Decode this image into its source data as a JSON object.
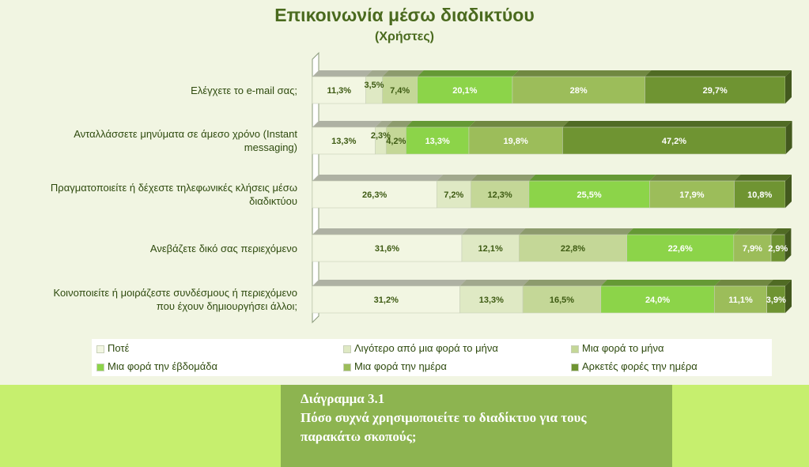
{
  "chart_data": {
    "type": "bar",
    "stacked": true,
    "orientation": "horizontal",
    "percent": true,
    "title": "Επικοινωνία μέσω διαδικτύου",
    "subtitle": "(Χρήστες)",
    "xlim": [
      0,
      100
    ],
    "legend_position": "bottom",
    "categories": [
      "Ελέγχετε το e-mail σας;",
      "Ανταλλάσσετε μηνύματα σε άμεσο χρόνο  (Instant messaging)",
      "Πραγματοποιείτε ή δέχεστε τηλεφωνικές κλήσεις μέσω διαδικτύου",
      "Ανεβάζετε δικό σας περιεχόμενο",
      "Κοινοποιείτε ή μοιράζεστε συνδέσμους ή περιεχόμενο που έχουν δημιουργήσει άλλοι;"
    ],
    "category_lines": [
      [
        "Ελέγχετε το e-mail σας;"
      ],
      [
        "Ανταλλάσσετε μηνύματα σε άμεσο χρόνο  (Instant",
        "messaging)"
      ],
      [
        "Πραγματοποιείτε ή δέχεστε τηλεφωνικές κλήσεις μέσω",
        "διαδικτύου"
      ],
      [
        "Ανεβάζετε δικό σας περιεχόμενο"
      ],
      [
        "Κοινοποιείτε ή μοιράζεστε συνδέσμους ή περιεχόμενο",
        "που έχουν δημιουργήσει άλλοι;"
      ]
    ],
    "series": [
      {
        "name": "Ποτέ",
        "color": "#f2f6e2",
        "values": [
          11.3,
          13.3,
          26.3,
          31.6,
          31.2
        ]
      },
      {
        "name": "Λιγότερο από μια φορά το μήνα",
        "color": "#dfe9c4",
        "values": [
          3.5,
          2.3,
          7.2,
          12.1,
          13.3
        ]
      },
      {
        "name": "Μια φορά το μήνα",
        "color": "#c4d797",
        "values": [
          7.4,
          4.2,
          12.3,
          22.8,
          16.5
        ]
      },
      {
        "name": "Μια φορά την έβδομάδα",
        "color": "#8cd449",
        "values": [
          20.1,
          13.3,
          25.5,
          22.6,
          24.0
        ]
      },
      {
        "name": "Μια φορά την ημέρα",
        "color": "#9cbd5a",
        "values": [
          28,
          19.8,
          17.9,
          7.9,
          11.1
        ]
      },
      {
        "name": "Αρκετές φορές την ημέρα",
        "color": "#6f9432",
        "values": [
          29.7,
          47.2,
          10.8,
          2.9,
          3.9
        ]
      }
    ],
    "data_labels": [
      [
        "11,3%",
        "3,5%",
        "7,4%",
        "20,1%",
        "28%",
        "29,7%"
      ],
      [
        "13,3%",
        "2,3%",
        "4,2%",
        "13,3%",
        "19,8%",
        "47,2%"
      ],
      [
        "26,3%",
        "7,2%",
        "12,3%",
        "25,5%",
        "17,9%",
        "10,8%"
      ],
      [
        "31,6%",
        "12,1%",
        "22,8%",
        "22,6%",
        "7,9%",
        "2,9%"
      ],
      [
        "31,2%",
        "13,3%",
        "16,5%",
        "24,0%",
        "11,1%",
        "3,9%"
      ]
    ]
  },
  "caption": {
    "line1": "Διάγραμμα 3.1",
    "line2": "Πόσο συχνά χρησιμοποιείτε το διαδίκτυο για τους",
    "line3": "παρακάτω σκοπούς;"
  }
}
